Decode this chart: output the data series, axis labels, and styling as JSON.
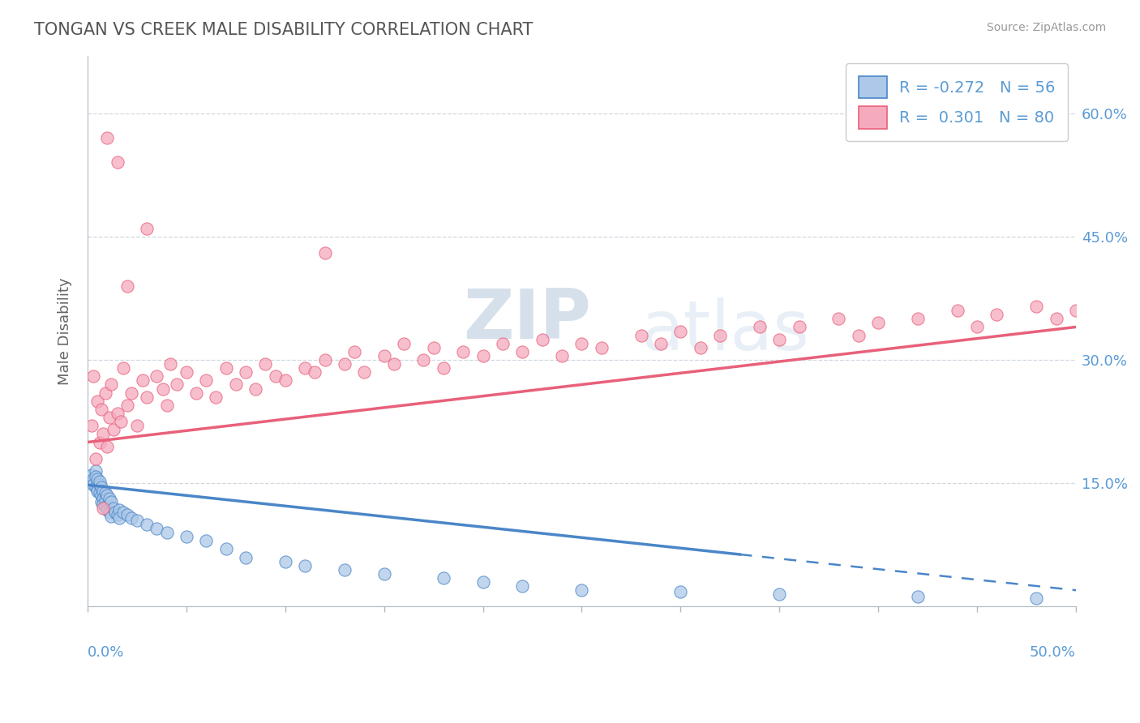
{
  "title": "TONGAN VS CREEK MALE DISABILITY CORRELATION CHART",
  "source": "Source: ZipAtlas.com",
  "ylabel": "Male Disability",
  "ylabel_right_ticks": [
    "15.0%",
    "30.0%",
    "45.0%",
    "60.0%"
  ],
  "ylabel_right_vals": [
    0.15,
    0.3,
    0.45,
    0.6
  ],
  "xmin": 0.0,
  "xmax": 0.5,
  "ymin": 0.0,
  "ymax": 0.67,
  "tongan_color": "#adc8e8",
  "creek_color": "#f5aabe",
  "tongan_line_color": "#4a86c8",
  "creek_line_color": "#e8607a",
  "legend_tongan_label": "R = -0.272   N = 56",
  "legend_creek_label": "R =  0.301   N = 80",
  "watermark_zip": "ZIP",
  "watermark_atlas": "atlas",
  "grid_color": "#d0d8e0",
  "background_color": "#ffffff",
  "tongan_x": [
    0.002,
    0.003,
    0.003,
    0.004,
    0.004,
    0.004,
    0.005,
    0.005,
    0.005,
    0.005,
    0.006,
    0.006,
    0.006,
    0.007,
    0.007,
    0.007,
    0.008,
    0.008,
    0.008,
    0.009,
    0.009,
    0.009,
    0.01,
    0.01,
    0.011,
    0.011,
    0.012,
    0.012,
    0.013,
    0.014,
    0.015,
    0.016,
    0.016,
    0.018,
    0.02,
    0.022,
    0.025,
    0.03,
    0.035,
    0.04,
    0.05,
    0.06,
    0.07,
    0.08,
    0.1,
    0.11,
    0.13,
    0.15,
    0.18,
    0.2,
    0.22,
    0.25,
    0.3,
    0.35,
    0.42,
    0.48
  ],
  "tongan_y": [
    0.16,
    0.155,
    0.148,
    0.165,
    0.145,
    0.158,
    0.15,
    0.142,
    0.155,
    0.14,
    0.148,
    0.138,
    0.152,
    0.135,
    0.145,
    0.128,
    0.14,
    0.132,
    0.125,
    0.138,
    0.13,
    0.122,
    0.135,
    0.118,
    0.132,
    0.115,
    0.128,
    0.11,
    0.12,
    0.115,
    0.112,
    0.118,
    0.108,
    0.115,
    0.112,
    0.108,
    0.105,
    0.1,
    0.095,
    0.09,
    0.085,
    0.08,
    0.07,
    0.06,
    0.055,
    0.05,
    0.045,
    0.04,
    0.035,
    0.03,
    0.025,
    0.02,
    0.018,
    0.015,
    0.012,
    0.01
  ],
  "creek_x": [
    0.002,
    0.003,
    0.004,
    0.005,
    0.006,
    0.007,
    0.008,
    0.009,
    0.01,
    0.011,
    0.012,
    0.013,
    0.015,
    0.017,
    0.018,
    0.02,
    0.022,
    0.025,
    0.028,
    0.03,
    0.035,
    0.038,
    0.04,
    0.042,
    0.045,
    0.05,
    0.055,
    0.06,
    0.065,
    0.07,
    0.075,
    0.08,
    0.085,
    0.09,
    0.095,
    0.1,
    0.11,
    0.115,
    0.12,
    0.13,
    0.135,
    0.14,
    0.15,
    0.155,
    0.16,
    0.17,
    0.175,
    0.18,
    0.19,
    0.2,
    0.21,
    0.22,
    0.23,
    0.24,
    0.25,
    0.26,
    0.28,
    0.29,
    0.3,
    0.31,
    0.32,
    0.34,
    0.35,
    0.36,
    0.38,
    0.39,
    0.4,
    0.42,
    0.44,
    0.45,
    0.46,
    0.48,
    0.49,
    0.5,
    0.12,
    0.03,
    0.02,
    0.015,
    0.01,
    0.008
  ],
  "creek_y": [
    0.22,
    0.28,
    0.18,
    0.25,
    0.2,
    0.24,
    0.21,
    0.26,
    0.195,
    0.23,
    0.27,
    0.215,
    0.235,
    0.225,
    0.29,
    0.245,
    0.26,
    0.22,
    0.275,
    0.255,
    0.28,
    0.265,
    0.245,
    0.295,
    0.27,
    0.285,
    0.26,
    0.275,
    0.255,
    0.29,
    0.27,
    0.285,
    0.265,
    0.295,
    0.28,
    0.275,
    0.29,
    0.285,
    0.3,
    0.295,
    0.31,
    0.285,
    0.305,
    0.295,
    0.32,
    0.3,
    0.315,
    0.29,
    0.31,
    0.305,
    0.32,
    0.31,
    0.325,
    0.305,
    0.32,
    0.315,
    0.33,
    0.32,
    0.335,
    0.315,
    0.33,
    0.34,
    0.325,
    0.34,
    0.35,
    0.33,
    0.345,
    0.35,
    0.36,
    0.34,
    0.355,
    0.365,
    0.35,
    0.36,
    0.43,
    0.46,
    0.39,
    0.54,
    0.57,
    0.12
  ],
  "tongan_line_y0": 0.148,
  "tongan_line_y_at_xmax": 0.02,
  "creek_line_y0": 0.2,
  "creek_line_y_at_xmax": 0.34
}
